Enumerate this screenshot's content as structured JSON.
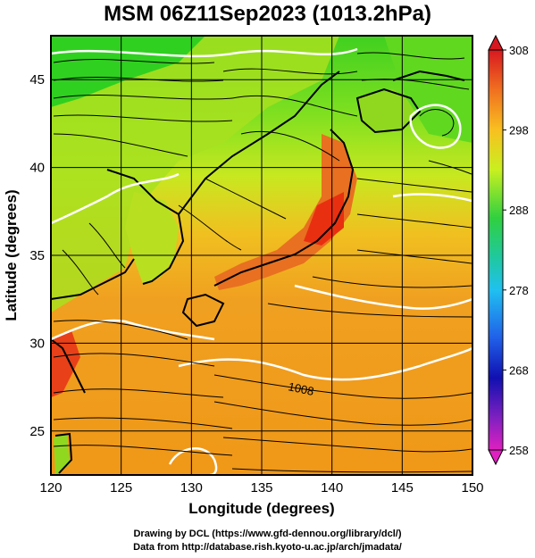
{
  "title": "MSM 06Z11Sep2023 (1013.2hPa)",
  "map": {
    "lon_range": [
      120,
      150
    ],
    "lat_range": [
      22.5,
      47.5
    ],
    "x_label": "Longitude (degrees)",
    "y_label": "Latitude  (degrees)",
    "x_ticks": [
      "120",
      "125",
      "130",
      "135",
      "140",
      "145",
      "150"
    ],
    "y_ticks": [
      "25",
      "30",
      "35",
      "40",
      "45"
    ],
    "contour_label": "1008",
    "field_colors": {
      "ocean_south": "#f0a020",
      "land_north": "#40d020",
      "land_mid": "#a0e020",
      "hot": "#e83010",
      "coast": "#000000",
      "isobar": "#ffffff",
      "streamline": "#000000"
    }
  },
  "colorbar": {
    "ticks": [
      "308",
      "298",
      "288",
      "278",
      "268",
      "258"
    ],
    "min": 258,
    "max": 308
  },
  "credits": {
    "line1": "Drawing by DCL (https://www.gfd-dennou.org/library/dcl/)",
    "line2": "Data from http://database.rish.kyoto-u.ac.jp/arch/jmadata/"
  }
}
